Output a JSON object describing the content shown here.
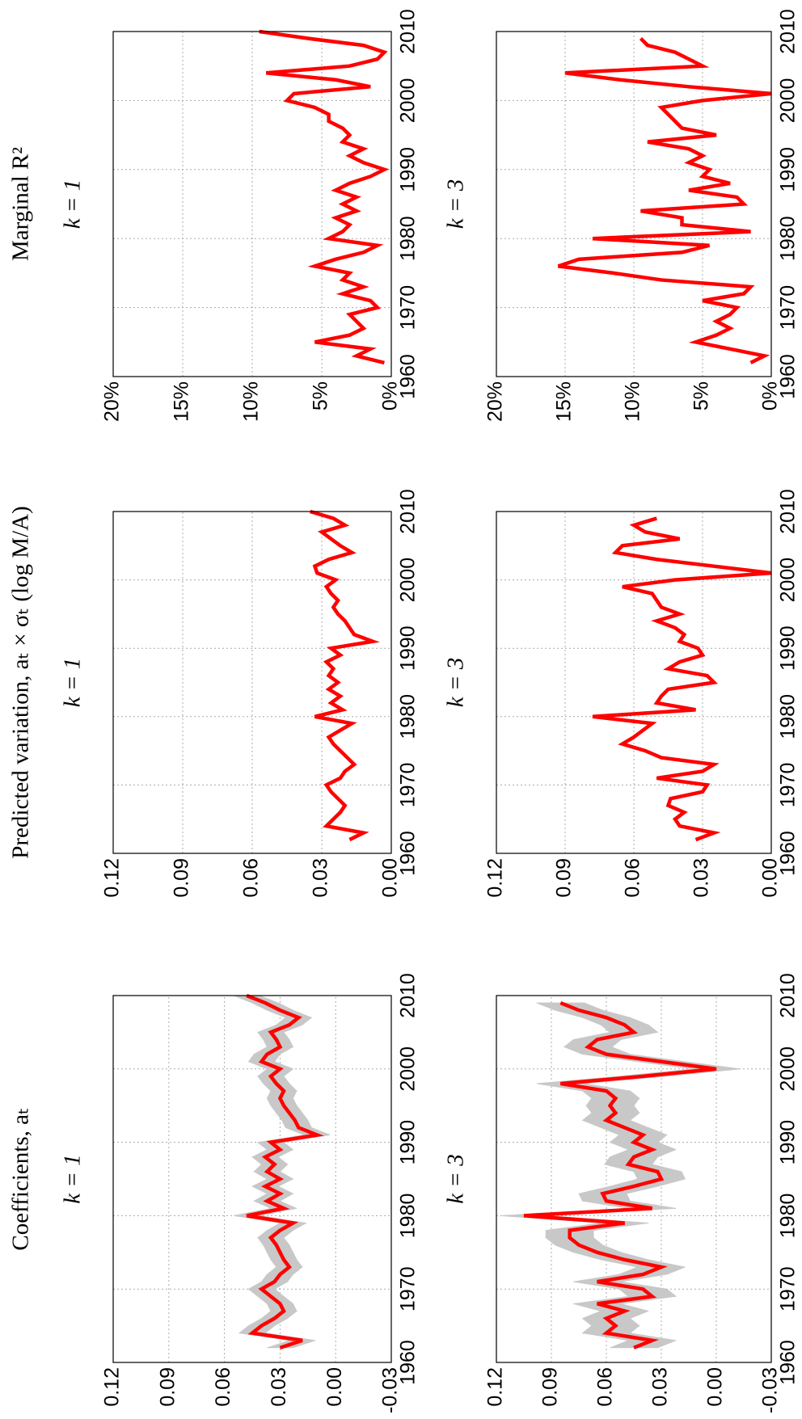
{
  "chart_data": [
    {
      "type": "line",
      "title": "Coefficients, aₜ",
      "panel_label": "k = 1",
      "x": [
        1962,
        1963,
        1964,
        1965,
        1966,
        1967,
        1968,
        1969,
        1970,
        1971,
        1972,
        1973,
        1974,
        1975,
        1976,
        1977,
        1978,
        1979,
        1980,
        1981,
        1982,
        1983,
        1984,
        1985,
        1986,
        1987,
        1988,
        1989,
        1990,
        1991,
        1992,
        1993,
        1994,
        1995,
        1996,
        1997,
        1998,
        1999,
        2000,
        2001,
        2002,
        2003,
        2004,
        2005,
        2006,
        2007,
        2008,
        2009,
        2010
      ],
      "series": [
        {
          "color": "#ff0000",
          "values": [
            0.03,
            0.018,
            0.045,
            0.04,
            0.033,
            0.028,
            0.03,
            0.035,
            0.04,
            0.033,
            0.03,
            0.025,
            0.028,
            0.03,
            0.032,
            0.035,
            0.03,
            0.023,
            0.048,
            0.028,
            0.037,
            0.03,
            0.038,
            0.03,
            0.037,
            0.033,
            0.038,
            0.03,
            0.035,
            0.01,
            0.02,
            0.022,
            0.025,
            0.028,
            0.03,
            0.028,
            0.032,
            0.035,
            0.03,
            0.04,
            0.037,
            0.03,
            0.032,
            0.035,
            0.025,
            0.02,
            0.03,
            0.038,
            0.048
          ]
        }
      ],
      "band": {
        "color": "#c8c8c8",
        "lower": [
          0.023,
          0.011,
          0.038,
          0.033,
          0.026,
          0.021,
          0.023,
          0.028,
          0.033,
          0.026,
          0.023,
          0.018,
          0.021,
          0.023,
          0.025,
          0.028,
          0.023,
          0.016,
          0.041,
          0.021,
          0.03,
          0.023,
          0.031,
          0.023,
          0.03,
          0.026,
          0.031,
          0.023,
          0.028,
          0.003,
          0.013,
          0.015,
          0.018,
          0.021,
          0.023,
          0.021,
          0.025,
          0.028,
          0.023,
          0.033,
          0.03,
          0.023,
          0.025,
          0.028,
          0.018,
          0.013,
          0.023,
          0.031,
          0.041
        ],
        "upper": [
          0.037,
          0.025,
          0.052,
          0.047,
          0.04,
          0.035,
          0.037,
          0.042,
          0.047,
          0.04,
          0.037,
          0.032,
          0.035,
          0.037,
          0.039,
          0.042,
          0.037,
          0.03,
          0.055,
          0.035,
          0.044,
          0.037,
          0.045,
          0.037,
          0.044,
          0.04,
          0.045,
          0.037,
          0.042,
          0.017,
          0.027,
          0.029,
          0.032,
          0.035,
          0.037,
          0.035,
          0.039,
          0.042,
          0.037,
          0.047,
          0.044,
          0.037,
          0.039,
          0.042,
          0.032,
          0.027,
          0.037,
          0.045,
          0.055
        ]
      },
      "xlim": [
        1960,
        2010
      ],
      "xticks": [
        1960,
        1970,
        1980,
        1990,
        2000,
        2010
      ],
      "ylim": [
        -0.03,
        0.12
      ],
      "yticks": [
        -0.03,
        {
          "value": 0,
          "label": "0.00"
        },
        0.03,
        0.06,
        0.09,
        0.12
      ],
      "grid": true
    },
    {
      "type": "line",
      "title": "Predicted variation, aₜ × σₜ (log M/A)",
      "panel_label": "k = 1",
      "x": [
        1962,
        1963,
        1964,
        1965,
        1966,
        1967,
        1968,
        1969,
        1970,
        1971,
        1972,
        1973,
        1974,
        1975,
        1976,
        1977,
        1978,
        1979,
        1980,
        1981,
        1982,
        1983,
        1984,
        1985,
        1986,
        1987,
        1988,
        1989,
        1990,
        1991,
        1992,
        1993,
        1994,
        1995,
        1996,
        1997,
        1998,
        1999,
        2000,
        2001,
        2002,
        2003,
        2004,
        2005,
        2006,
        2007,
        2008,
        2009,
        2010
      ],
      "series": [
        {
          "color": "#ff0000",
          "values": [
            0.018,
            0.012,
            0.028,
            0.025,
            0.022,
            0.02,
            0.023,
            0.026,
            0.028,
            0.022,
            0.02,
            0.016,
            0.019,
            0.022,
            0.025,
            0.027,
            0.022,
            0.017,
            0.033,
            0.021,
            0.026,
            0.022,
            0.027,
            0.023,
            0.027,
            0.025,
            0.028,
            0.022,
            0.026,
            0.008,
            0.016,
            0.018,
            0.02,
            0.023,
            0.025,
            0.023,
            0.026,
            0.028,
            0.024,
            0.032,
            0.033,
            0.027,
            0.017,
            0.022,
            0.026,
            0.03,
            0.02,
            0.025,
            0.035
          ]
        }
      ],
      "xlim": [
        1960,
        2010
      ],
      "xticks": [
        1960,
        1970,
        1980,
        1990,
        2000,
        2010
      ],
      "ylim": [
        0,
        0.12
      ],
      "yticks": [
        {
          "value": 0,
          "label": "0.00"
        },
        0.03,
        0.06,
        0.09,
        0.12
      ],
      "grid": true
    },
    {
      "type": "line",
      "title": "Marginal R²",
      "panel_label": "k = 1",
      "x": [
        1962,
        1963,
        1964,
        1965,
        1966,
        1967,
        1968,
        1969,
        1970,
        1971,
        1972,
        1973,
        1974,
        1975,
        1976,
        1977,
        1978,
        1979,
        1980,
        1981,
        1982,
        1983,
        1984,
        1985,
        1986,
        1987,
        1988,
        1989,
        1990,
        1991,
        1992,
        1993,
        1994,
        1995,
        1996,
        1997,
        1998,
        1999,
        2000,
        2001,
        2002,
        2003,
        2004,
        2005,
        2006,
        2007,
        2008,
        2009,
        2010
      ],
      "series": [
        {
          "color": "#ff0000",
          "values": [
            0.5,
            2.5,
            1.5,
            5.5,
            3,
            2,
            2.5,
            3,
            1,
            1.5,
            3.5,
            2,
            3.5,
            3,
            5.5,
            4,
            2,
            1,
            4.5,
            3.5,
            3,
            4,
            2.5,
            3.5,
            2.5,
            4,
            3,
            1.5,
            0.5,
            2,
            3,
            2,
            3.5,
            3,
            3.5,
            4.5,
            4.5,
            5.5,
            7.5,
            7,
            1.5,
            4,
            9,
            3,
            1,
            0.5,
            2,
            6,
            9.5
          ]
        }
      ],
      "xlim": [
        1960,
        2010
      ],
      "xticks": [
        1960,
        1970,
        1980,
        1990,
        2000,
        2010
      ],
      "ylim": [
        0,
        20
      ],
      "yticks": [
        {
          "value": 0,
          "label": "0%"
        },
        {
          "value": 5,
          "label": "5%"
        },
        {
          "value": 10,
          "label": "10%"
        },
        {
          "value": 15,
          "label": "15%"
        },
        {
          "value": 20,
          "label": "20%"
        }
      ],
      "grid": true
    },
    {
      "type": "line",
      "panel_label": "k = 3",
      "x": [
        1962,
        1963,
        1964,
        1965,
        1966,
        1967,
        1968,
        1969,
        1970,
        1971,
        1972,
        1973,
        1974,
        1975,
        1976,
        1977,
        1978,
        1979,
        1980,
        1981,
        1982,
        1983,
        1984,
        1985,
        1986,
        1987,
        1988,
        1989,
        1990,
        1991,
        1992,
        1993,
        1994,
        1995,
        1996,
        1997,
        1998,
        1999,
        2000,
        2001,
        2002,
        2003,
        2004,
        2005,
        2006,
        2007,
        2008,
        2009,
        2010
      ],
      "series": [
        {
          "color": "#ff0000",
          "values": [
            0.045,
            0.035,
            0.06,
            0.055,
            0.06,
            0.05,
            0.065,
            0.035,
            0.04,
            0.065,
            0.04,
            0.03,
            0.05,
            0.065,
            0.075,
            0.08,
            0.08,
            0.05,
            0.105,
            0.035,
            0.06,
            0.062,
            0.045,
            0.03,
            0.032,
            0.048,
            0.045,
            0.035,
            0.045,
            0.04,
            0.05,
            0.06,
            0.055,
            0.058,
            0.055,
            0.06,
            0.085,
            0.04,
            0.0,
            0.03,
            0.06,
            0.07,
            0.065,
            0.045,
            0.05,
            0.06,
            0.075,
            0.085,
            null
          ]
        }
      ],
      "band": {
        "color": "#c8c8c8",
        "lower": [
          0.032,
          0.022,
          0.047,
          0.042,
          0.047,
          0.037,
          0.052,
          0.022,
          0.027,
          0.052,
          0.027,
          0.017,
          0.037,
          0.052,
          0.062,
          0.067,
          0.067,
          0.037,
          0.092,
          0.022,
          0.047,
          0.049,
          0.032,
          0.017,
          0.019,
          0.035,
          0.032,
          0.022,
          0.032,
          0.027,
          0.037,
          0.047,
          0.042,
          0.045,
          0.042,
          0.047,
          0.072,
          0.027,
          -0.013,
          0.017,
          0.047,
          0.057,
          0.052,
          0.032,
          0.037,
          0.047,
          0.062,
          0.072,
          null
        ],
        "upper": [
          0.058,
          0.048,
          0.073,
          0.068,
          0.073,
          0.063,
          0.078,
          0.048,
          0.053,
          0.078,
          0.053,
          0.043,
          0.063,
          0.078,
          0.088,
          0.093,
          0.093,
          0.063,
          0.118,
          0.048,
          0.073,
          0.075,
          0.058,
          0.043,
          0.045,
          0.061,
          0.058,
          0.048,
          0.058,
          0.053,
          0.063,
          0.073,
          0.068,
          0.071,
          0.068,
          0.073,
          0.098,
          0.053,
          0.013,
          0.043,
          0.073,
          0.083,
          0.078,
          0.058,
          0.063,
          0.073,
          0.088,
          0.098,
          null
        ]
      },
      "xlim": [
        1960,
        2010
      ],
      "xticks": [
        1960,
        1970,
        1980,
        1990,
        2000,
        2010
      ],
      "ylim": [
        -0.03,
        0.12
      ],
      "yticks": [
        -0.03,
        {
          "value": 0,
          "label": "0.00"
        },
        0.03,
        0.06,
        0.09,
        0.12
      ],
      "grid": true
    },
    {
      "type": "line",
      "panel_label": "k = 3",
      "x": [
        1962,
        1963,
        1964,
        1965,
        1966,
        1967,
        1968,
        1969,
        1970,
        1971,
        1972,
        1973,
        1974,
        1975,
        1976,
        1977,
        1978,
        1979,
        1980,
        1981,
        1982,
        1983,
        1984,
        1985,
        1986,
        1987,
        1988,
        1989,
        1990,
        1991,
        1992,
        1993,
        1994,
        1995,
        1996,
        1997,
        1998,
        1999,
        2000,
        2001,
        2002,
        2003,
        2004,
        2005,
        2006,
        2007,
        2008,
        2009,
        2010
      ],
      "series": [
        {
          "color": "#ff0000",
          "values": [
            0.033,
            0.025,
            0.04,
            0.042,
            0.038,
            0.045,
            0.044,
            0.03,
            0.028,
            0.05,
            0.03,
            0.025,
            0.048,
            0.055,
            0.065,
            0.06,
            0.056,
            0.052,
            0.078,
            0.033,
            0.05,
            0.048,
            0.045,
            0.025,
            0.028,
            0.045,
            0.04,
            0.03,
            0.032,
            0.04,
            0.038,
            0.042,
            0.05,
            0.04,
            0.048,
            0.05,
            0.052,
            0.065,
            0.042,
            0.0,
            0.025,
            0.05,
            0.068,
            0.065,
            0.04,
            0.055,
            0.06,
            0.05,
            null
          ]
        }
      ],
      "xlim": [
        1960,
        2010
      ],
      "xticks": [
        1960,
        1970,
        1980,
        1990,
        2000,
        2010
      ],
      "ylim": [
        0,
        0.12
      ],
      "yticks": [
        {
          "value": 0,
          "label": "0.00"
        },
        0.03,
        0.06,
        0.09,
        0.12
      ],
      "grid": true
    },
    {
      "type": "line",
      "panel_label": "k = 3",
      "x": [
        1962,
        1963,
        1964,
        1965,
        1966,
        1967,
        1968,
        1969,
        1970,
        1971,
        1972,
        1973,
        1974,
        1975,
        1976,
        1977,
        1978,
        1979,
        1980,
        1981,
        1982,
        1983,
        1984,
        1985,
        1986,
        1987,
        1988,
        1989,
        1990,
        1991,
        1992,
        1993,
        1994,
        1995,
        1996,
        1997,
        1998,
        1999,
        2000,
        2001,
        2002,
        2003,
        2004,
        2005,
        2006,
        2007,
        2008,
        2009,
        2010
      ],
      "series": [
        {
          "color": "#ff0000",
          "values": [
            1.5,
            0.5,
            3,
            5.5,
            4,
            3,
            4,
            3,
            2.5,
            5,
            2,
            1.5,
            8,
            11.5,
            15.5,
            14,
            6.5,
            4.5,
            13,
            1.5,
            6.5,
            6.5,
            9.5,
            2,
            2.5,
            6,
            3,
            5,
            4.5,
            6,
            5,
            6,
            9,
            4,
            6.5,
            7,
            7.5,
            8,
            5,
            0,
            6,
            11,
            15,
            5,
            6,
            7,
            9,
            9.5,
            null
          ]
        }
      ],
      "xlim": [
        1960,
        2010
      ],
      "xticks": [
        1960,
        1970,
        1980,
        1990,
        2000,
        2010
      ],
      "ylim": [
        0,
        20
      ],
      "yticks": [
        {
          "value": 0,
          "label": "0%"
        },
        {
          "value": 5,
          "label": "5%"
        },
        {
          "value": 10,
          "label": "10%"
        },
        {
          "value": 15,
          "label": "15%"
        },
        {
          "value": 20,
          "label": "20%"
        }
      ],
      "grid": true
    }
  ]
}
